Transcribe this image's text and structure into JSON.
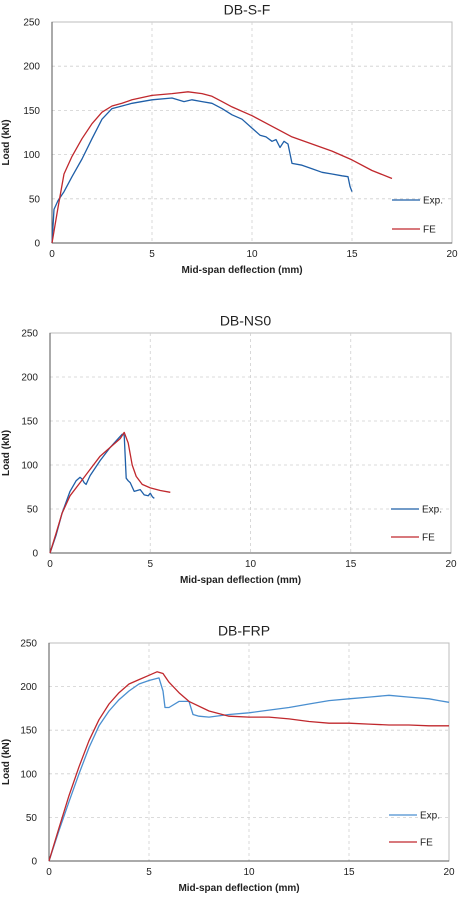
{
  "chart_data": [
    {
      "type": "line",
      "title": "DB-S-F",
      "xlabel": "Mid-span deflection (mm)",
      "ylabel": "Load (kN)",
      "xlim": [
        0,
        20
      ],
      "ylim": [
        0,
        250
      ],
      "xticks": [
        0,
        5,
        10,
        15,
        20
      ],
      "yticks": [
        0,
        50,
        100,
        150,
        200,
        250
      ],
      "grid": true,
      "legend_position": "right",
      "series": [
        {
          "name": "Exp.",
          "color": "#1f5fa8",
          "x": [
            0,
            0.1,
            0.3,
            0.6,
            1.0,
            1.5,
            2.0,
            2.5,
            3.0,
            3.5,
            4.0,
            5.0,
            6.0,
            6.6,
            7.0,
            7.5,
            8.0,
            8.5,
            9.0,
            9.5,
            10.0,
            10.4,
            10.7,
            11.0,
            11.2,
            11.4,
            11.6,
            11.8,
            12.0,
            12.5,
            13.0,
            13.5,
            14.0,
            14.5,
            14.8,
            14.9,
            15.0
          ],
          "y": [
            0,
            38,
            48,
            58,
            75,
            95,
            118,
            140,
            152,
            155,
            158,
            162,
            164,
            160,
            162,
            160,
            158,
            152,
            145,
            140,
            130,
            122,
            120,
            115,
            117,
            108,
            115,
            112,
            90,
            88,
            84,
            80,
            78,
            76,
            75,
            64,
            58
          ]
        },
        {
          "name": "FE",
          "color": "#c0282d",
          "x": [
            0,
            0.3,
            0.6,
            1.0,
            1.5,
            2.0,
            2.5,
            3.0,
            3.5,
            4.0,
            5.0,
            6.0,
            6.8,
            7.5,
            8.0,
            8.5,
            9.0,
            10.0,
            11.0,
            12.0,
            13.0,
            14.0,
            15.0,
            16.0,
            17.0
          ],
          "y": [
            0,
            40,
            78,
            98,
            118,
            135,
            148,
            155,
            158,
            162,
            167,
            169,
            171,
            169,
            166,
            160,
            154,
            144,
            132,
            120,
            112,
            104,
            94,
            82,
            73
          ]
        }
      ]
    },
    {
      "type": "line",
      "title": "DB-NS0",
      "xlabel": "Mid-span deflection (mm)",
      "ylabel": "Load (kN)",
      "xlim": [
        0,
        20
      ],
      "ylim": [
        0,
        250
      ],
      "xticks": [
        0,
        5,
        10,
        15,
        20
      ],
      "yticks": [
        0,
        50,
        100,
        150,
        200,
        250
      ],
      "grid": true,
      "legend_position": "right",
      "series": [
        {
          "name": "Exp.",
          "color": "#1f5fa8",
          "x": [
            0,
            0.3,
            0.6,
            1.0,
            1.3,
            1.5,
            1.6,
            1.7,
            1.8,
            2.0,
            2.5,
            3.0,
            3.4,
            3.6,
            3.7,
            3.8,
            3.9,
            4.0,
            4.2,
            4.5,
            4.7,
            4.9,
            5.0,
            5.1,
            5.2
          ],
          "y": [
            0,
            20,
            45,
            70,
            82,
            86,
            84,
            80,
            78,
            88,
            105,
            120,
            130,
            135,
            134,
            85,
            82,
            80,
            70,
            72,
            66,
            65,
            68,
            64,
            62
          ]
        },
        {
          "name": "FE",
          "color": "#c0282d",
          "x": [
            0,
            0.3,
            0.6,
            1.0,
            1.5,
            2.0,
            2.5,
            3.0,
            3.5,
            3.7,
            3.9,
            4.1,
            4.3,
            4.6,
            5.0,
            5.5,
            6.0
          ],
          "y": [
            0,
            22,
            45,
            65,
            80,
            95,
            110,
            120,
            130,
            137,
            125,
            100,
            87,
            78,
            74,
            71,
            69
          ]
        }
      ]
    },
    {
      "type": "line",
      "title": "DB-FRP",
      "xlabel": "Mid-span deflection (mm)",
      "ylabel": "Load (kN)",
      "xlim": [
        0,
        20
      ],
      "ylim": [
        0,
        250
      ],
      "xticks": [
        0,
        5,
        10,
        15,
        20
      ],
      "yticks": [
        0,
        50,
        100,
        150,
        200,
        250
      ],
      "grid": true,
      "legend_position": "right",
      "series": [
        {
          "name": "Exp.",
          "color": "#4a8fd0",
          "x": [
            0,
            0.5,
            1.0,
            1.5,
            2.0,
            2.5,
            3.0,
            3.5,
            4.0,
            4.5,
            5.0,
            5.5,
            5.7,
            5.8,
            6.0,
            6.5,
            7.0,
            7.2,
            7.5,
            8.0,
            9.0,
            10.0,
            11.0,
            12.0,
            13.0,
            14.0,
            15.0,
            16.0,
            17.0,
            18.0,
            19.0,
            19.5,
            20.0
          ],
          "y": [
            0,
            35,
            68,
            100,
            130,
            155,
            172,
            185,
            195,
            203,
            207,
            210,
            195,
            176,
            176,
            183,
            183,
            168,
            166,
            165,
            168,
            170,
            173,
            176,
            180,
            184,
            186,
            188,
            190,
            188,
            186,
            184,
            182
          ]
        },
        {
          "name": "FE",
          "color": "#c0282d",
          "x": [
            0,
            0.5,
            1.0,
            1.5,
            2.0,
            2.5,
            3.0,
            3.5,
            4.0,
            4.5,
            5.0,
            5.4,
            5.7,
            6.0,
            6.5,
            7.0,
            8.0,
            9.0,
            10.0,
            11.0,
            12.0,
            13.0,
            14.0,
            15.0,
            16.0,
            17.0,
            18.0,
            19.0,
            20.0
          ],
          "y": [
            0,
            38,
            75,
            108,
            138,
            162,
            180,
            193,
            203,
            208,
            213,
            217,
            215,
            205,
            193,
            183,
            172,
            166,
            165,
            165,
            163,
            160,
            158,
            158,
            157,
            156,
            156,
            155,
            155
          ]
        }
      ]
    }
  ]
}
